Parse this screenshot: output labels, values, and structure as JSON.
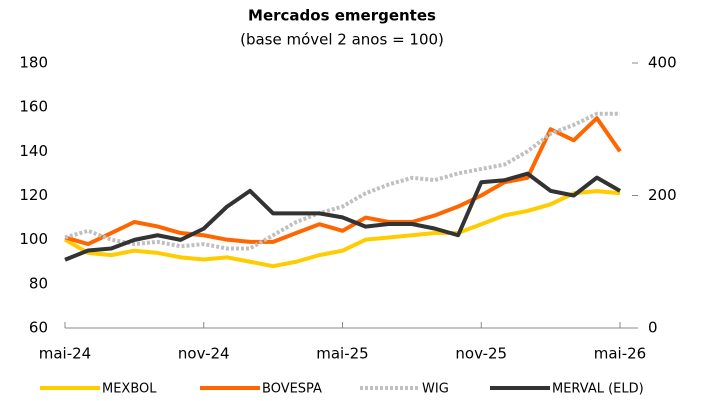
{
  "chart_data": {
    "type": "line",
    "title": "Mercados emergentes",
    "subtitle": "(base móvel 2 anos = 100)",
    "categories": [
      "mai-24",
      null,
      null,
      null,
      null,
      null,
      "nov-24",
      null,
      null,
      null,
      null,
      null,
      "mai-25",
      null,
      null,
      null,
      null,
      null,
      "nov-25",
      null,
      null,
      null,
      null,
      null,
      "mai-26"
    ],
    "series": [
      {
        "name": "MEXBOL",
        "color": "#ffcc00",
        "values": [
          100,
          94,
          93,
          95,
          94,
          92,
          91,
          92,
          90,
          88,
          90,
          93,
          95,
          100,
          101,
          102,
          103,
          103,
          107,
          111,
          113,
          116,
          121,
          122,
          121
        ]
      },
      {
        "name": "BOVESPA",
        "color": "#ff6600",
        "values": [
          101,
          98,
          103,
          108,
          106,
          103,
          102,
          100,
          99,
          99,
          103,
          107,
          104,
          110,
          108,
          108,
          111,
          115,
          120,
          126,
          128,
          150,
          145,
          155,
          140
        ]
      },
      {
        "name": "WIG",
        "color": "#c0c0c0",
        "dashed": true,
        "values": [
          101,
          104,
          100,
          98,
          99,
          97,
          98,
          96,
          96,
          102,
          108,
          112,
          115,
          121,
          125,
          128,
          127,
          130,
          132,
          134,
          140,
          148,
          152,
          157,
          157
        ]
      },
      {
        "name": "MERVAL (ELD)",
        "color": "#333333",
        "axis": "y2",
        "values": [
          103,
          117,
          120,
          133,
          140,
          133,
          150,
          183,
          207,
          173,
          173,
          173,
          167,
          153,
          157,
          157,
          150,
          140,
          220,
          223,
          233,
          207,
          200,
          227,
          207
        ]
      }
    ],
    "ylim": [
      60,
      180
    ],
    "yticks": [
      60,
      80,
      100,
      120,
      140,
      160,
      180
    ],
    "y2lim": [
      0,
      400
    ],
    "y2ticks": [
      0,
      200,
      400
    ],
    "grid": false,
    "legend": "bottom"
  }
}
